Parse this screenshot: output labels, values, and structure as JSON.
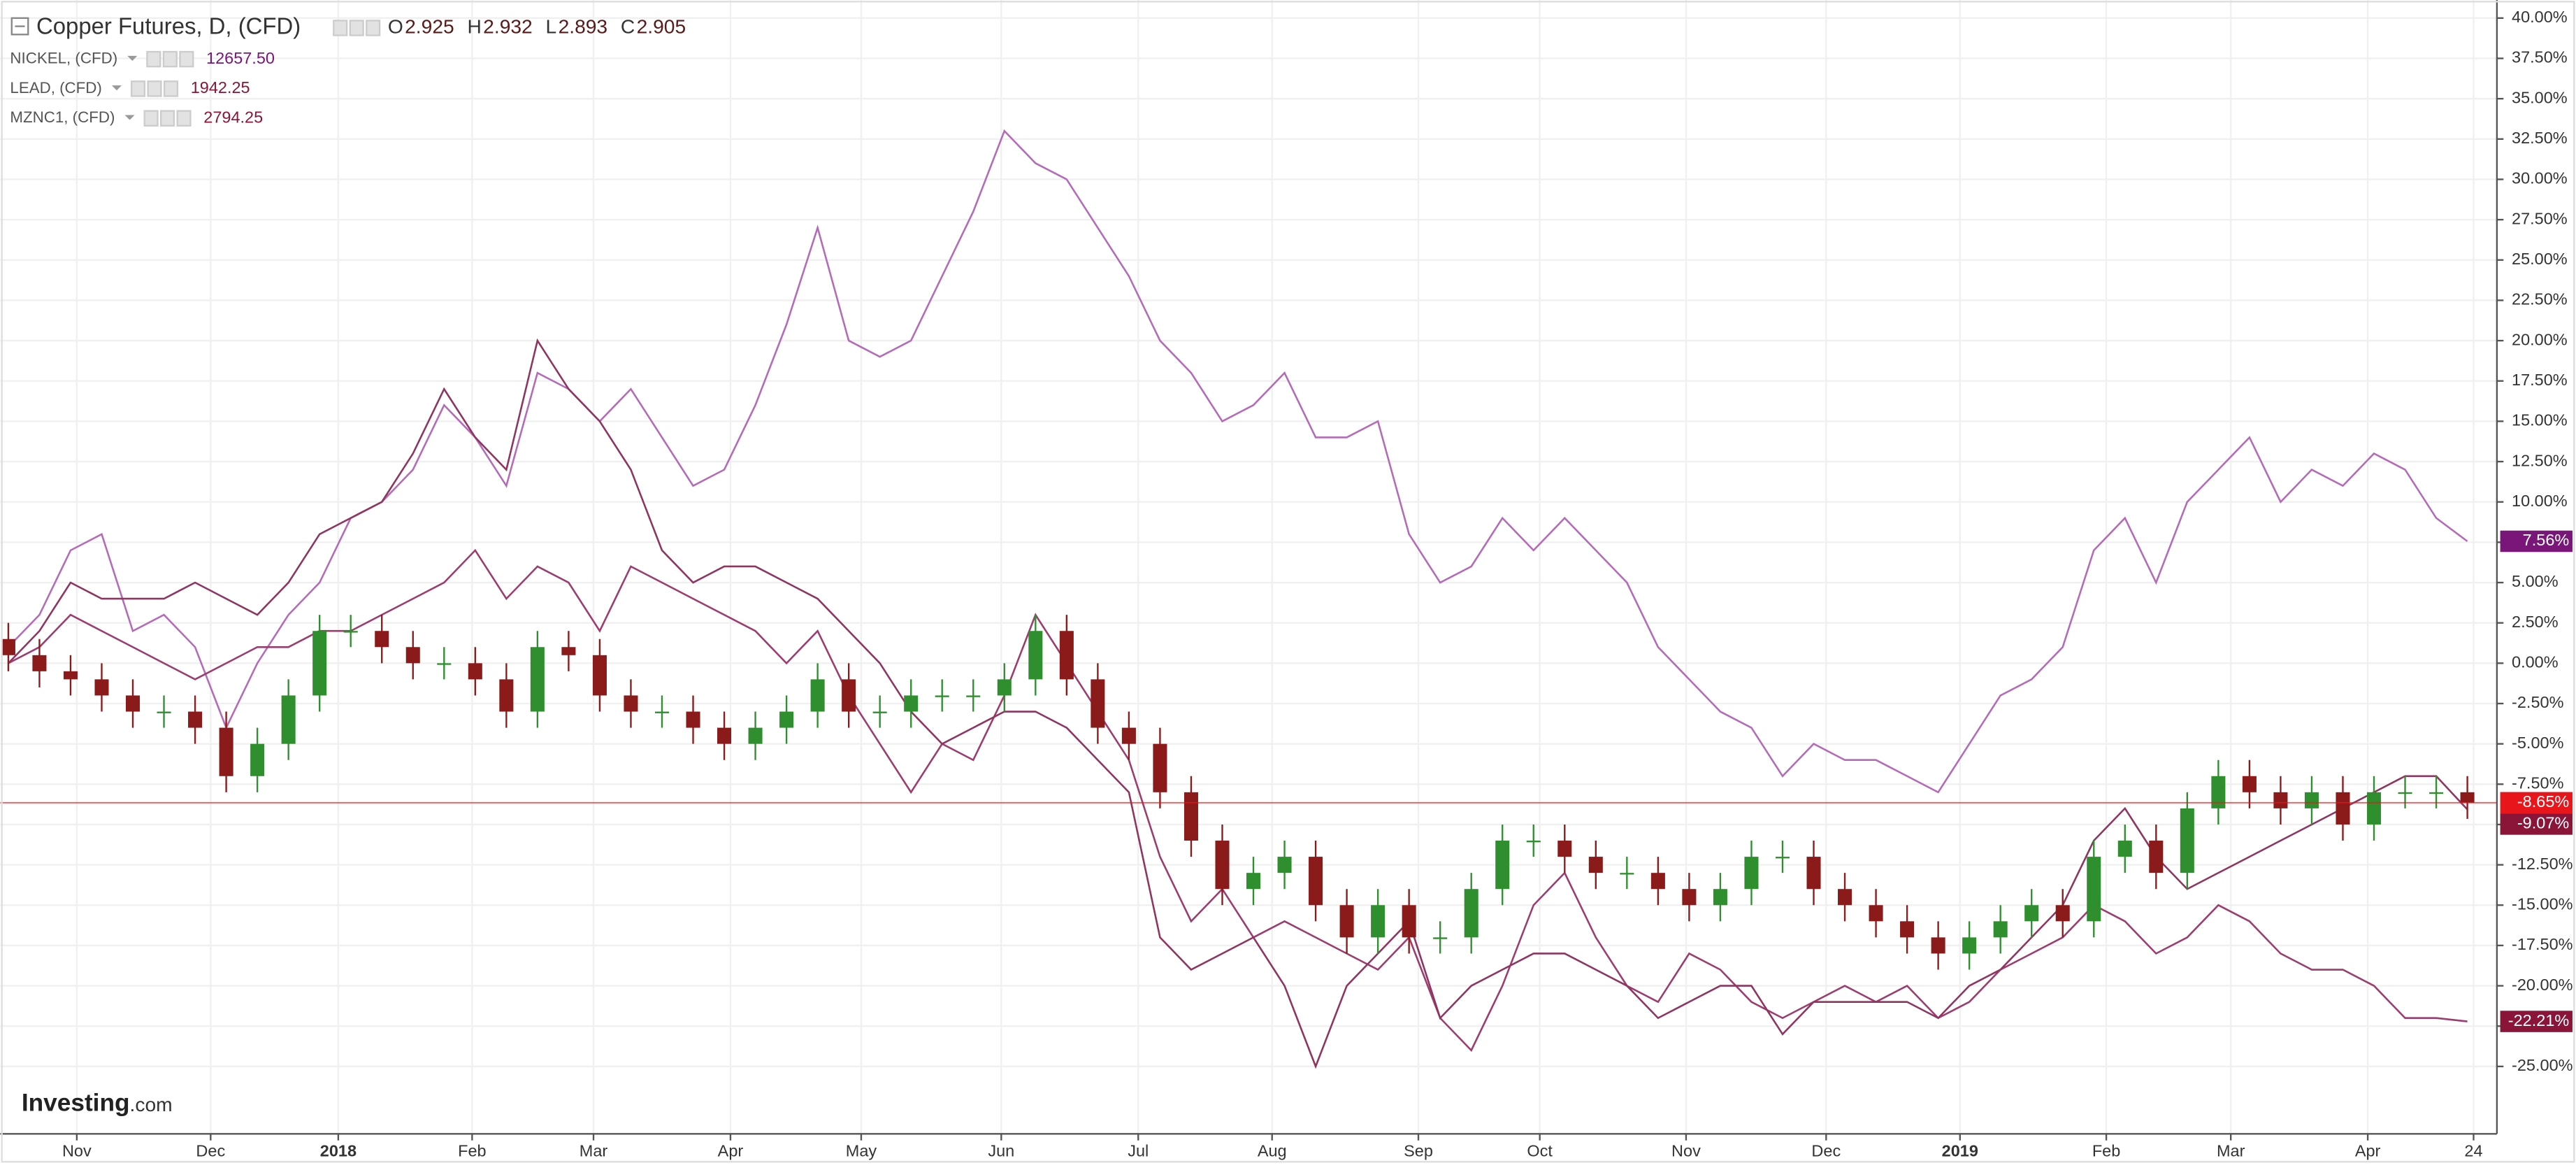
{
  "chart_data": {
    "type": "candlestick",
    "title": "Copper Futures, D, (CFD)",
    "ohlc_legend": [
      {
        "label": "O",
        "value": 2.925
      },
      {
        "label": "H",
        "value": 2.932
      },
      {
        "label": "L",
        "value": 2.893
      },
      {
        "label": "C",
        "value": 2.905
      }
    ],
    "brand": "Investing",
    "brand_suffix": ".com",
    "grid": true,
    "x": [
      0,
      1,
      2,
      3,
      4,
      5,
      6,
      7,
      8,
      9,
      10,
      11,
      12,
      13,
      14,
      15,
      16,
      17,
      18,
      19,
      20,
      21,
      22,
      23,
      24,
      25,
      26,
      27,
      28,
      29,
      30,
      31,
      32,
      33,
      34,
      35,
      36,
      37,
      38,
      39,
      40,
      41,
      42,
      43,
      44,
      45,
      46,
      47,
      48,
      49,
      50,
      51,
      52,
      53,
      54,
      55,
      56,
      57,
      58,
      59,
      60,
      61,
      62,
      63,
      64,
      65,
      66,
      67,
      68,
      69,
      70,
      71,
      72,
      73,
      74,
      75,
      76,
      77,
      78,
      79
    ],
    "xlim": [
      -0.26,
      79.95
    ],
    "xticks": [
      {
        "value": 2.2,
        "label": "Nov"
      },
      {
        "value": 6.5,
        "label": "Dec"
      },
      {
        "value": 10.6,
        "label": "2018"
      },
      {
        "value": 14.9,
        "label": "Feb"
      },
      {
        "value": 18.8,
        "label": "Mar"
      },
      {
        "value": 23.2,
        "label": "Apr"
      },
      {
        "value": 27.4,
        "label": "May"
      },
      {
        "value": 31.9,
        "label": "Jun"
      },
      {
        "value": 36.3,
        "label": "Jul"
      },
      {
        "value": 40.6,
        "label": "Aug"
      },
      {
        "value": 45.3,
        "label": "Sep"
      },
      {
        "value": 49.2,
        "label": "Oct"
      },
      {
        "value": 53.9,
        "label": "Nov"
      },
      {
        "value": 58.4,
        "label": "Dec"
      },
      {
        "value": 62.7,
        "label": "2019"
      },
      {
        "value": 67.4,
        "label": "Feb"
      },
      {
        "value": 71.4,
        "label": "Mar"
      },
      {
        "value": 75.8,
        "label": "Apr"
      },
      {
        "value": 79.2,
        "label": "24"
      }
    ],
    "ylim": [
      -29.18,
      41.12
    ],
    "yticks": [
      {
        "value": -25,
        "label": "-25.00%"
      },
      {
        "value": -22.5,
        "label": "-22.50%"
      },
      {
        "value": -20,
        "label": "-20.00%"
      },
      {
        "value": -17.5,
        "label": "-17.50%"
      },
      {
        "value": -15,
        "label": "-15.00%"
      },
      {
        "value": -12.5,
        "label": "-12.50%"
      },
      {
        "value": -10,
        "label": "-10.00%"
      },
      {
        "value": -7.5,
        "label": "-7.50%"
      },
      {
        "value": -5,
        "label": "-5.00%"
      },
      {
        "value": -2.5,
        "label": "-2.50%"
      },
      {
        "value": 0,
        "label": "0.00%"
      },
      {
        "value": 2.5,
        "label": "2.50%"
      },
      {
        "value": 5,
        "label": "5.00%"
      },
      {
        "value": 7.5,
        "label": "7.50%"
      },
      {
        "value": 10,
        "label": "10.00%"
      },
      {
        "value": 12.5,
        "label": "12.50%"
      },
      {
        "value": 15,
        "label": "15.00%"
      },
      {
        "value": 17.5,
        "label": "17.50%"
      },
      {
        "value": 20,
        "label": "20.00%"
      },
      {
        "value": 22.5,
        "label": "22.50%"
      },
      {
        "value": 25,
        "label": "25.00%"
      },
      {
        "value": 27.5,
        "label": "27.50%"
      },
      {
        "value": 30,
        "label": "30.00%"
      },
      {
        "value": 32.5,
        "label": "32.50%"
      },
      {
        "value": 35,
        "label": "35.00%"
      },
      {
        "value": 37.5,
        "label": "37.50%"
      },
      {
        "value": 40,
        "label": "40.00%"
      }
    ],
    "candles": {
      "up_color": "#2f8f2f",
      "down_color": "#8b1a1a",
      "last_color": "#e8161b",
      "last_label": "-8.65%",
      "open": [
        1.5,
        0.5,
        -0.5,
        -1,
        -2,
        -3,
        -3,
        -4,
        -7,
        -5,
        -2,
        2,
        2,
        1,
        0,
        0,
        -1,
        -3,
        1,
        0.5,
        -2,
        -3,
        -3,
        -4,
        -5,
        -4,
        -3,
        -1,
        -3,
        -3,
        -2,
        -2,
        -2,
        -1,
        2,
        -1,
        -4,
        -5,
        -8,
        -11,
        -14,
        -13,
        -12,
        -15,
        -17,
        -15,
        -17,
        -17,
        -14,
        -11,
        -11,
        -12,
        -13,
        -13,
        -14,
        -15,
        -14,
        -12,
        -12,
        -14,
        -15,
        -16,
        -17,
        -18,
        -17,
        -16,
        -15,
        -16,
        -12,
        -11,
        -13,
        -9,
        -7,
        -8,
        -9,
        -8,
        -10,
        -8,
        -8,
        -8
      ],
      "high": [
        2.5,
        1.5,
        0.5,
        0,
        -1,
        -2,
        -2,
        -3,
        -4,
        -1,
        3,
        3,
        3,
        2,
        1,
        1,
        0,
        2,
        2,
        1.5,
        -1,
        -2,
        -2,
        -3,
        -3,
        -2,
        0,
        0,
        -2,
        -1,
        -1,
        -1,
        0,
        3,
        3,
        0,
        -3,
        -4,
        -7,
        -10,
        -12,
        -11,
        -11,
        -14,
        -14,
        -14,
        -16,
        -13,
        -10,
        -10,
        -10,
        -11,
        -12,
        -12,
        -13,
        -13,
        -11,
        -11,
        -11,
        -13,
        -14,
        -15,
        -16,
        -16,
        -15,
        -14,
        -14,
        -11,
        -10,
        -10,
        -8,
        -6,
        -6,
        -7,
        -7,
        -7,
        -7,
        -7,
        -7,
        -7
      ],
      "low": [
        -0.5,
        -1.5,
        -2,
        -3,
        -4,
        -4,
        -5,
        -8,
        -8,
        -6,
        -3,
        1,
        0,
        -1,
        -1,
        -2,
        -4,
        -4,
        -0.5,
        -3,
        -4,
        -4,
        -5,
        -6,
        -6,
        -5,
        -4,
        -4,
        -4,
        -4,
        -3,
        -3,
        -3,
        -2,
        -2,
        -5,
        -6,
        -9,
        -12,
        -15,
        -15,
        -14,
        -16,
        -18,
        -18,
        -18,
        -18,
        -18,
        -15,
        -12,
        -13,
        -14,
        -14,
        -15,
        -16,
        -16,
        -15,
        -13,
        -15,
        -16,
        -17,
        -18,
        -19,
        -19,
        -18,
        -17,
        -17,
        -17,
        -13,
        -14,
        -14,
        -10,
        -9,
        -10,
        -10,
        -11,
        -11,
        -9,
        -9,
        -9.65
      ],
      "close": [
        0.5,
        -0.5,
        -1,
        -2,
        -3,
        -3,
        -4,
        -7,
        -5,
        -2,
        2,
        2,
        1,
        0,
        0,
        -1,
        -3,
        1,
        0.5,
        -2,
        -3,
        -3,
        -4,
        -5,
        -4,
        -3,
        -1,
        -3,
        -3,
        -2,
        -2,
        -2,
        -1,
        2,
        -1,
        -4,
        -5,
        -8,
        -11,
        -14,
        -13,
        -12,
        -15,
        -17,
        -15,
        -17,
        -17,
        -14,
        -11,
        -11,
        -12,
        -13,
        -13,
        -14,
        -15,
        -14,
        -12,
        -12,
        -14,
        -15,
        -16,
        -17,
        -18,
        -17,
        -16,
        -15,
        -16,
        -12,
        -11,
        -13,
        -9,
        -7,
        -8,
        -9,
        -8,
        -10,
        -8,
        -8,
        -8,
        -8.65
      ]
    },
    "series": [
      {
        "name": "NICKEL, (CFD)",
        "legend_value": {
          "value": 12657.5,
          "label": "12657.50"
        },
        "color": "#b46bb8",
        "label_color": "#7a1679",
        "last_label": "7.56%",
        "values": [
          1,
          3,
          7,
          8,
          2,
          3,
          1,
          -4,
          0,
          3,
          5,
          9,
          10,
          12,
          16,
          14,
          11,
          18,
          17,
          15,
          17,
          14,
          11,
          12,
          16,
          21,
          27,
          20,
          19,
          20,
          24,
          28,
          33,
          31,
          30,
          27,
          24,
          20,
          18,
          15,
          16,
          18,
          14,
          14,
          15,
          8,
          5,
          6,
          9,
          7,
          9,
          7,
          5,
          1,
          -1,
          -3,
          -4,
          -7,
          -5,
          -6,
          -6,
          -7,
          -8,
          -5,
          -2,
          -1,
          1,
          7,
          9,
          5,
          10,
          12,
          14,
          10,
          12,
          11,
          13,
          12,
          9,
          7.56
        ]
      },
      {
        "name": "LEAD, (CFD)",
        "legend_value": 1942.25,
        "color": "#9c3d6e",
        "label_color": "#8a1538",
        "last_label": "-22.21%",
        "values": [
          0,
          1,
          3,
          2,
          1,
          0,
          -1,
          0,
          1,
          1,
          2,
          2,
          3,
          4,
          5,
          7,
          4,
          6,
          5,
          2,
          6,
          5,
          4,
          3,
          2,
          0,
          2,
          -2,
          -5,
          -8,
          -5,
          -6,
          -2,
          3,
          0,
          -3,
          -6,
          -12,
          -16,
          -14,
          -17,
          -16,
          -17,
          -18,
          -19,
          -17,
          -22,
          -24,
          -20,
          -15,
          -13,
          -17,
          -20,
          -21,
          -18,
          -19,
          -21,
          -22,
          -21,
          -20,
          -21,
          -20,
          -22,
          -21,
          -19,
          -18,
          -17,
          -15,
          -16,
          -18,
          -17,
          -15,
          -16,
          -18,
          -19,
          -19,
          -20,
          -22,
          -22,
          -22.21
        ]
      },
      {
        "name": "MZNC1, (CFD)",
        "legend_value": 2794.25,
        "color": "#8e3560",
        "label_color": "#8a1538",
        "last_label": "-9.07%",
        "values": [
          0,
          2,
          5,
          4,
          4,
          4,
          5,
          4,
          3,
          5,
          8,
          9,
          10,
          13,
          17,
          14,
          12,
          20,
          17,
          15,
          12,
          7,
          5,
          6,
          6,
          5,
          4,
          2,
          0,
          -3,
          -5,
          -4,
          -3,
          -3,
          -4,
          -6,
          -8,
          -17,
          -19,
          -18,
          -17,
          -20,
          -25,
          -20,
          -18,
          -16,
          -22,
          -20,
          -19,
          -18,
          -18,
          -19,
          -20,
          -22,
          -21,
          -20,
          -20,
          -23,
          -21,
          -21,
          -21,
          -21,
          -22,
          -20,
          -19,
          -17,
          -15,
          -11,
          -9,
          -12,
          -14,
          -13,
          -12,
          -11,
          -10,
          -9,
          -8,
          -7,
          -7,
          -9.07
        ]
      }
    ]
  }
}
